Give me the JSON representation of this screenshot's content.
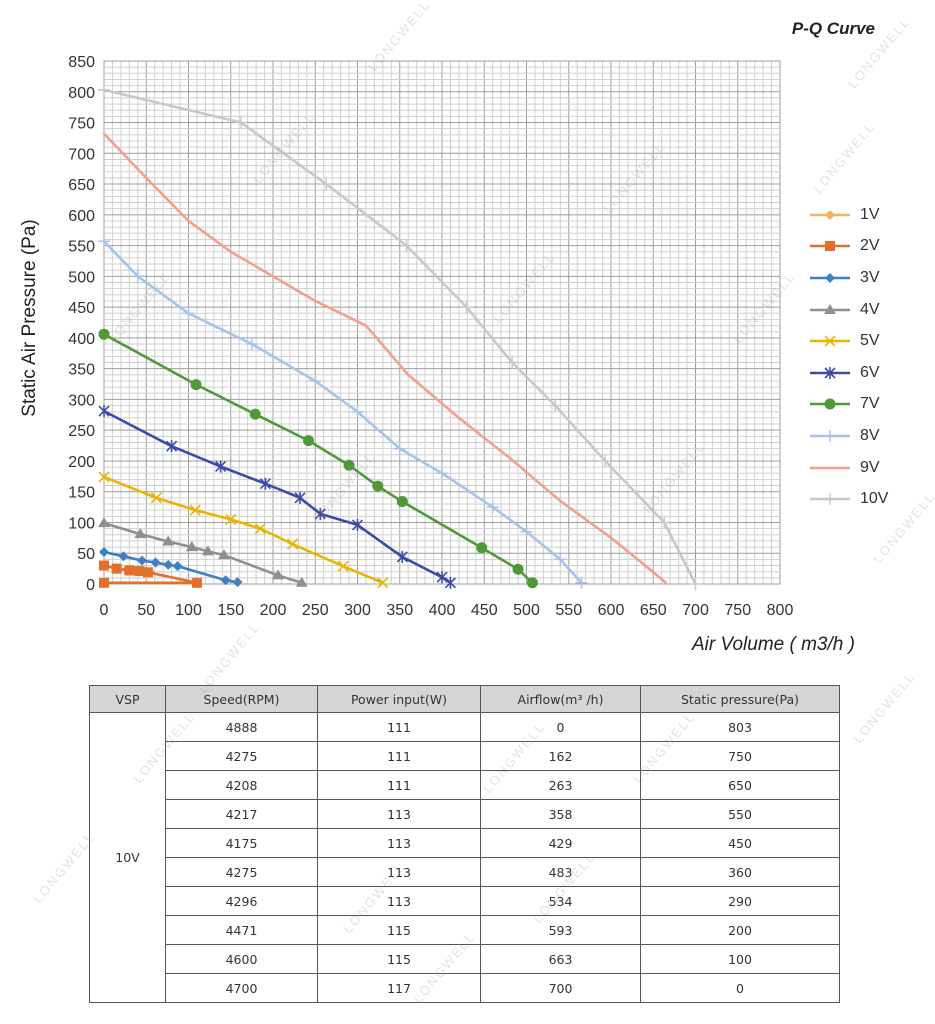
{
  "chart_data": {
    "type": "line",
    "title": "P-Q Curve",
    "xlabel": "Air Volume ( m3/h )",
    "ylabel": "Static Air Pressure  (Pa)",
    "xlim": [
      0,
      800
    ],
    "ylim": [
      0,
      850
    ],
    "xticks": [
      0,
      50,
      100,
      150,
      200,
      250,
      300,
      350,
      400,
      450,
      500,
      550,
      600,
      650,
      700,
      750,
      800
    ],
    "yticks": [
      0,
      50,
      100,
      150,
      200,
      250,
      300,
      350,
      400,
      450,
      500,
      550,
      600,
      650,
      700,
      750,
      800,
      850
    ],
    "grid": true,
    "legend_position": "right",
    "series": [
      {
        "name": "1V",
        "color": "#F7B05B",
        "marker": "diamond",
        "x": [
          0,
          15,
          28,
          40,
          55
        ],
        "y": [
          30,
          25,
          23,
          21,
          19
        ]
      },
      {
        "name": "2V",
        "color": "#E0702A",
        "marker": "square",
        "x": [
          0,
          15,
          30,
          42,
          52,
          110,
          0
        ],
        "y": [
          30,
          25,
          22,
          21,
          19,
          2,
          2
        ]
      },
      {
        "name": "3V",
        "color": "#3F7FC4",
        "marker": "diamond",
        "x": [
          0,
          23,
          45,
          61,
          76,
          87,
          144,
          158
        ],
        "y": [
          52,
          45,
          38,
          35,
          31,
          29,
          6,
          3
        ]
      },
      {
        "name": "4V",
        "color": "#8F8F8F",
        "marker": "triangle",
        "x": [
          0,
          43,
          76,
          104,
          123,
          142,
          206,
          234
        ],
        "y": [
          99,
          81,
          69,
          60,
          53,
          47,
          14,
          2
        ]
      },
      {
        "name": "5V",
        "color": "#E8B400",
        "marker": "x",
        "x": [
          0,
          62,
          108,
          150,
          185,
          223,
          283,
          330
        ],
        "y": [
          174,
          140,
          120,
          105,
          90,
          65,
          29,
          2
        ]
      },
      {
        "name": "6V",
        "color": "#3B4CA6",
        "marker": "asterisk",
        "x": [
          0,
          80,
          138,
          191,
          232,
          256,
          300,
          353,
          400,
          410
        ],
        "y": [
          281,
          224,
          191,
          163,
          140,
          114,
          96,
          44,
          11,
          2
        ]
      },
      {
        "name": "7V",
        "color": "#4E9A3A",
        "marker": "circle",
        "x": [
          0,
          109,
          179,
          242,
          290,
          324,
          353,
          447,
          490,
          507
        ],
        "y": [
          406,
          324,
          276,
          233,
          193,
          159,
          134,
          59,
          24,
          2
        ]
      },
      {
        "name": "8V",
        "color": "#A6C4EA",
        "marker": "plus",
        "x": [
          0,
          40,
          100,
          175,
          250,
          300,
          350,
          400,
          460,
          500,
          540,
          565
        ],
        "y": [
          557,
          500,
          440,
          390,
          330,
          280,
          220,
          180,
          125,
          85,
          40,
          2
        ]
      },
      {
        "name": "9V",
        "color": "#F2A08A",
        "marker": "none",
        "x": [
          0,
          50,
          100,
          150,
          200,
          250,
          310,
          360,
          420,
          480,
          540,
          600,
          645,
          665
        ],
        "y": [
          732,
          660,
          590,
          540,
          500,
          460,
          420,
          340,
          270,
          205,
          135,
          75,
          25,
          2
        ]
      },
      {
        "name": "10V",
        "color": "#C8C8C8",
        "marker": "plus",
        "x": [
          0,
          162,
          263,
          358,
          429,
          483,
          534,
          593,
          663,
          700
        ],
        "y": [
          803,
          750,
          650,
          550,
          450,
          360,
          290,
          200,
          100,
          0
        ]
      }
    ]
  },
  "watermark": "LONGWELL",
  "table": {
    "headers": {
      "vsp": "VSP",
      "speed": "Speed(RPM)",
      "power": "Power input(W)",
      "airflow": "Airflow(m³ /h)",
      "pressure": "Static pressure(Pa)"
    },
    "vsp_value": "10V",
    "rows": [
      {
        "speed": "4888",
        "power": "111",
        "airflow": "0",
        "pressure": "803"
      },
      {
        "speed": "4275",
        "power": "111",
        "airflow": "162",
        "pressure": "750"
      },
      {
        "speed": "4208",
        "power": "111",
        "airflow": "263",
        "pressure": "650"
      },
      {
        "speed": "4217",
        "power": "113",
        "airflow": "358",
        "pressure": "550"
      },
      {
        "speed": "4175",
        "power": "113",
        "airflow": "429",
        "pressure": "450"
      },
      {
        "speed": "4275",
        "power": "113",
        "airflow": "483",
        "pressure": "360"
      },
      {
        "speed": "4296",
        "power": "113",
        "airflow": "534",
        "pressure": "290"
      },
      {
        "speed": "4471",
        "power": "115",
        "airflow": "593",
        "pressure": "200"
      },
      {
        "speed": "4600",
        "power": "115",
        "airflow": "663",
        "pressure": "100"
      },
      {
        "speed": "4700",
        "power": "117",
        "airflow": "700",
        "pressure": "0"
      }
    ]
  }
}
